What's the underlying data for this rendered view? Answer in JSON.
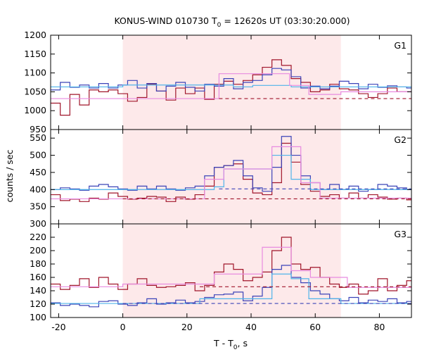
{
  "chart_data": {
    "type": "line",
    "title": "KONUS-WIND 010730 T₀ = 12620s UT (03:30:20.000)",
    "title_parts": {
      "pre": "KONUS-WIND 010730 T",
      "sub": "0",
      "post": " = 12620s UT (03:30:20.000)"
    },
    "xlabel_parts": {
      "pre": "T - T",
      "sub": "0",
      "post": ", s"
    },
    "ylabel": "counts / sec",
    "xlim": [
      -22.5,
      90
    ],
    "x_ticks": [
      -20,
      0,
      20,
      40,
      60,
      80
    ],
    "highlight_interval": [
      0,
      68
    ],
    "colors": {
      "highlight": "#fde9ea",
      "dark_red": "#a0152a",
      "blue": "#3b43b8",
      "light_blue": "#4fb4ea",
      "pink": "#e88be0"
    },
    "x_step": [
      -22.5,
      -19.5,
      -16.5,
      -13.5,
      -10.5,
      -7.5,
      -4.5,
      -1.5,
      1.5,
      4.5,
      7.5,
      10.5,
      13.5,
      16.5,
      19.5,
      22.5,
      25.5,
      28.5,
      31.5,
      34.5,
      37.5,
      40.5,
      43.5,
      46.5,
      49.5,
      52.5,
      55.5,
      58.5,
      61.5,
      64.5,
      67.5,
      70.5,
      73.5,
      76.5,
      79.5,
      82.5,
      85.5,
      88.5,
      90
    ],
    "panels": [
      {
        "label": "G1",
        "ylim": [
          950,
          1200
        ],
        "yticks": [
          950,
          1000,
          1050,
          1100,
          1150,
          1200
        ],
        "series": [
          {
            "color_key": "dark_red",
            "style": "step",
            "y": [
              1020,
              988,
              1043,
              1015,
              1055,
              1050,
              1055,
              1045,
              1025,
              1035,
              1070,
              1052,
              1028,
              1060,
              1045,
              1060,
              1030,
              1070,
              1078,
              1070,
              1080,
              1095,
              1115,
              1135,
              1120,
              1085,
              1075,
              1050,
              1055,
              1070,
              1058,
              1055,
              1045,
              1035,
              1045,
              1060,
              1050,
              1050
            ]
          },
          {
            "color_key": "blue",
            "style": "step",
            "y": [
              1055,
              1075,
              1062,
              1068,
              1060,
              1072,
              1060,
              1068,
              1080,
              1060,
              1072,
              1052,
              1065,
              1075,
              1062,
              1052,
              1070,
              1065,
              1085,
              1058,
              1075,
              1080,
              1095,
              1112,
              1108,
              1090,
              1060,
              1065,
              1058,
              1065,
              1078,
              1072,
              1058,
              1070,
              1062,
              1066,
              1063,
              1060
            ]
          },
          {
            "color_key": "light_blue",
            "style": "step",
            "breaks": [
              -22.5,
              0,
              34.5,
              40.5,
              52.5,
              90
            ],
            "y": [
              1063,
              1068,
              1063,
              1067,
              1063
            ]
          },
          {
            "color_key": "pink",
            "style": "step",
            "breaks": [
              -22.5,
              30,
              52,
              58,
              68,
              90
            ],
            "y": [
              1032,
              1098,
              1067,
              1043,
              1050
            ]
          },
          {
            "color_key": "dark_red",
            "style": "dashed",
            "from": 30,
            "y": 1032
          }
        ]
      },
      {
        "label": "G2",
        "ylim": [
          300,
          575
        ],
        "yticks": [
          300,
          350,
          400,
          450,
          500,
          550
        ],
        "series": [
          {
            "color_key": "dark_red",
            "style": "step",
            "y": [
              385,
              368,
              372,
              365,
              375,
              372,
              390,
              380,
              372,
              375,
              380,
              378,
              365,
              378,
              372,
              385,
              410,
              465,
              470,
              475,
              430,
              390,
              385,
              420,
              535,
              480,
              415,
              395,
              380,
              385,
              375,
              390,
              375,
              385,
              378,
              372,
              375,
              370
            ]
          },
          {
            "color_key": "blue",
            "style": "step",
            "y": [
              400,
              405,
              402,
              398,
              410,
              415,
              408,
              402,
              398,
              410,
              402,
              410,
              402,
              398,
              405,
              410,
              440,
              465,
              470,
              485,
              440,
              405,
              395,
              465,
              555,
              500,
              440,
              420,
              400,
              415,
              400,
              410,
              395,
              400,
              415,
              410,
              405,
              400
            ]
          },
          {
            "color_key": "light_blue",
            "style": "step",
            "breaks": [
              -22.5,
              28.5,
              31.5,
              46.5,
              52.5,
              58.5,
              90
            ],
            "y": [
              400,
              408,
              460,
              500,
              430,
              400
            ]
          },
          {
            "color_key": "pink",
            "style": "step",
            "breaks": [
              -22.5,
              25.5,
              31.5,
              46.5,
              55.5,
              61.5,
              90
            ],
            "y": [
              373,
              430,
              460,
              525,
              420,
              375
            ]
          },
          {
            "color_key": "dark_red",
            "style": "dashed",
            "from": 0,
            "y": 373
          },
          {
            "color_key": "blue",
            "style": "dashed",
            "from": 30,
            "y": 402
          }
        ]
      },
      {
        "label": "G3",
        "ylim": [
          100,
          240
        ],
        "yticks": [
          100,
          120,
          140,
          160,
          180,
          200,
          220
        ],
        "series": [
          {
            "color_key": "dark_red",
            "style": "step",
            "y": [
              150,
              142,
              148,
              158,
              145,
              160,
              150,
              142,
              150,
              158,
              148,
              145,
              146,
              148,
              152,
              140,
              148,
              168,
              180,
              172,
              155,
              160,
              168,
              200,
              220,
              180,
              172,
              175,
              160,
              150,
              145,
              150,
              135,
              140,
              158,
              140,
              148,
              155
            ]
          },
          {
            "color_key": "blue",
            "style": "step",
            "y": [
              122,
              118,
              120,
              118,
              116,
              124,
              125,
              120,
              118,
              122,
              128,
              120,
              122,
              126,
              122,
              124,
              130,
              134,
              135,
              138,
              125,
              132,
              145,
              172,
              178,
              160,
              152,
              140,
              135,
              128,
              125,
              130,
              122,
              126,
              124,
              128,
              122,
              124
            ]
          },
          {
            "color_key": "light_blue",
            "style": "step",
            "breaks": [
              -22.5,
              24,
              46.5,
              52.5,
              58,
              68,
              90
            ],
            "y": [
              121,
              128,
              165,
              158,
              128,
              121
            ]
          },
          {
            "color_key": "pink",
            "style": "step",
            "breaks": [
              -22.5,
              0,
              28.5,
              43.5,
              52.5,
              58.5,
              70,
              90
            ],
            "y": [
              146,
              150,
              165,
              205,
              170,
              160,
              145
            ]
          },
          {
            "color_key": "dark_red",
            "style": "dashed",
            "from": 24,
            "y": 146
          },
          {
            "color_key": "blue",
            "style": "dashed",
            "from": 0,
            "y": 121
          }
        ]
      }
    ]
  }
}
